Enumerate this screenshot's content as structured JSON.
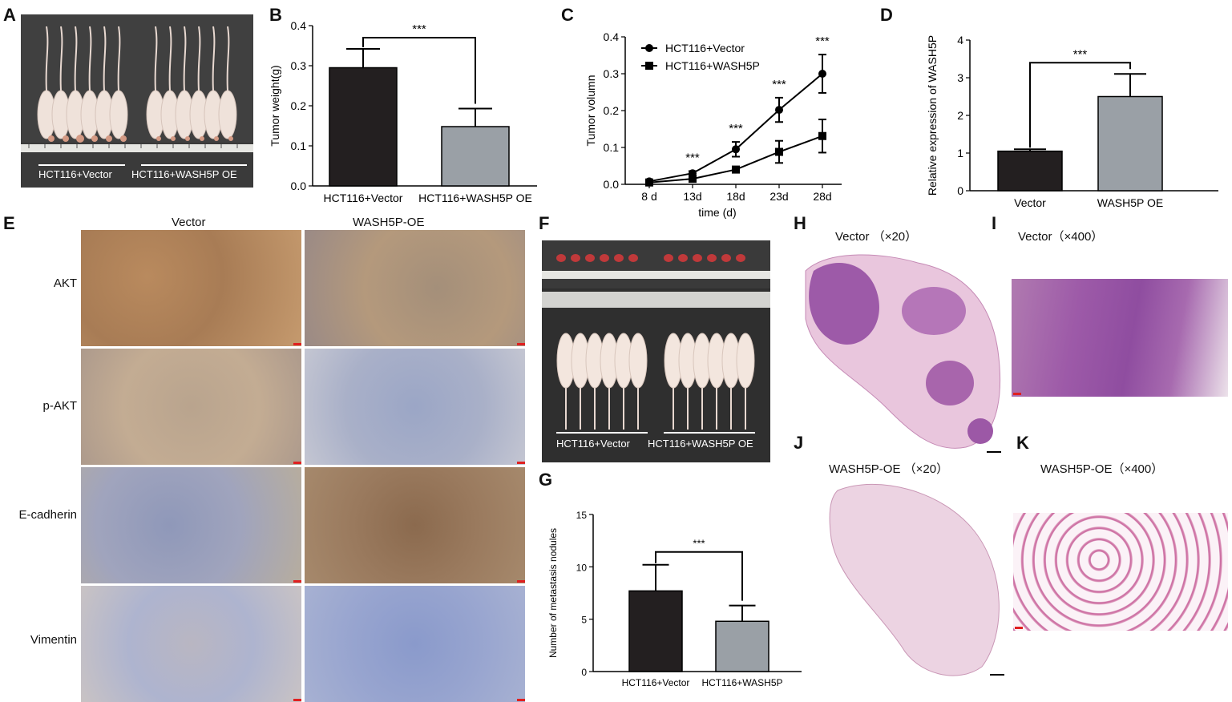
{
  "panels": {
    "A": {
      "label": "A",
      "left_caption": "HCT116+Vector",
      "right_caption": "HCT116+WASH5P OE"
    },
    "B": {
      "label": "B"
    },
    "C": {
      "label": "C"
    },
    "D": {
      "label": "D"
    },
    "E": {
      "label": "E",
      "col_headers": [
        "Vector",
        "WASH5P-OE"
      ],
      "row_labels": [
        "AKT",
        "p-AKT",
        "E-cadherin",
        "Vimentin"
      ]
    },
    "F": {
      "label": "F",
      "left_caption": "HCT116+Vector",
      "right_caption": "HCT116+WASH5P OE"
    },
    "G": {
      "label": "G"
    },
    "H": {
      "label": "H",
      "title": "Vector （×20）"
    },
    "I": {
      "label": "I",
      "title": "Vector（×400）"
    },
    "J": {
      "label": "J",
      "title": "WASH5P-OE （×20）"
    },
    "K": {
      "label": "K",
      "title": "WASH5P-OE（×400）"
    }
  },
  "colors": {
    "vector_bar": "#231f20",
    "wash_bar": "#9aa0a6",
    "ihc_brown": "#a87c55",
    "ihc_blue": "#8f9ec4",
    "he_purple": "#9a5ba6",
    "he_pink": "#e6b8d2"
  },
  "chart_data": [
    {
      "panel": "B",
      "type": "bar",
      "categories": [
        "HCT116+Vector",
        "HCT116+WASH5P OE"
      ],
      "values": [
        0.295,
        0.148
      ],
      "errors": [
        0.047,
        0.045
      ],
      "ylabel": "Tumor weight(g)",
      "xlabel": "",
      "ylim": [
        0,
        0.4
      ],
      "yticks": [
        "0.0",
        "0.1",
        "0.2",
        "0.3",
        "0.4"
      ],
      "significance": "***"
    },
    {
      "panel": "C",
      "type": "line",
      "x": [
        "8 d",
        "13d",
        "18d",
        "23d",
        "28d"
      ],
      "series": [
        {
          "name": "HCT116+Vector",
          "marker": "circle",
          "values": [
            0.008,
            0.03,
            0.095,
            0.202,
            0.3
          ],
          "errors": [
            0.004,
            0.006,
            0.02,
            0.033,
            0.052
          ]
        },
        {
          "name": "HCT116+WASH5P",
          "marker": "square",
          "values": [
            0.005,
            0.015,
            0.04,
            0.088,
            0.131
          ],
          "errors": [
            0.003,
            0.004,
            0.006,
            0.03,
            0.045
          ]
        }
      ],
      "xlabel": "time (d)",
      "ylabel": "Tumor volumn",
      "ylim": [
        0,
        0.4
      ],
      "yticks": [
        "0.0",
        "0.1",
        "0.2",
        "0.3",
        "0.4"
      ],
      "annotations": [
        "***",
        "***",
        "***",
        "***"
      ]
    },
    {
      "panel": "D",
      "type": "bar",
      "categories": [
        "Vector",
        "WASH5P OE"
      ],
      "values": [
        1.05,
        2.5
      ],
      "errors": [
        0.05,
        0.6
      ],
      "ylabel": "Relative expression of WASH5P",
      "xlabel": "",
      "ylim": [
        0,
        4
      ],
      "yticks": [
        "0",
        "1",
        "2",
        "3",
        "4"
      ],
      "significance": "***"
    },
    {
      "panel": "G",
      "type": "bar",
      "categories": [
        "HCT116+Vector",
        "HCT116+WASH5P"
      ],
      "values": [
        7.7,
        4.8
      ],
      "errors": [
        2.5,
        1.5
      ],
      "ylabel": "Number of metastasis nodules",
      "xlabel": "",
      "ylim": [
        0,
        15
      ],
      "yticks": [
        "0",
        "5",
        "10",
        "15"
      ],
      "significance": "***"
    }
  ]
}
